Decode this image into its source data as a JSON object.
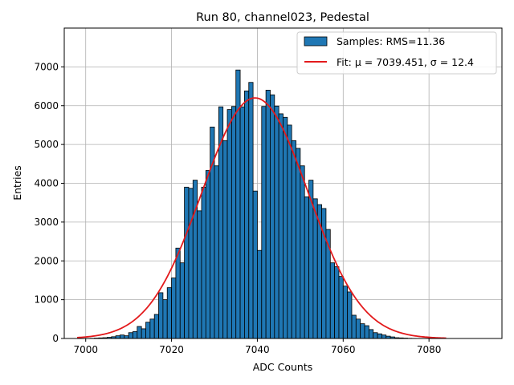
{
  "chart_data": {
    "type": "bar",
    "title": "Run 80, channel023, Pedestal",
    "xlabel": "ADC Counts",
    "ylabel": "Entries",
    "xlim": [
      6995,
      7097
    ],
    "ylim": [
      0,
      8000
    ],
    "xticks": [
      7000,
      7020,
      7040,
      7060,
      7080
    ],
    "yticks": [
      0,
      1000,
      2000,
      3000,
      4000,
      5000,
      6000,
      7000
    ],
    "grid": true,
    "legend_position": "top-right",
    "bar_color": "#1f77b4",
    "fit_color": "#e31a1c",
    "legend": {
      "hist_label": "Samples: RMS=11.36",
      "fit_label": "Fit: μ = 7039.451, σ = 12.4"
    },
    "histogram": {
      "bin_start": 7001,
      "bin_width": 1,
      "counts": [
        5,
        10,
        15,
        20,
        30,
        45,
        70,
        90,
        70,
        150,
        180,
        310,
        250,
        420,
        500,
        620,
        1180,
        1000,
        1310,
        1560,
        2330,
        1950,
        3900,
        3870,
        4080,
        3290,
        3900,
        4330,
        5450,
        4450,
        5970,
        5100,
        5900,
        5980,
        6920,
        5970,
        6380,
        6600,
        3800,
        2270,
        5980,
        6400,
        6280,
        5990,
        5790,
        5700,
        5500,
        5100,
        4900,
        4450,
        3650,
        4080,
        3600,
        3450,
        3350,
        2810,
        1950,
        1850,
        1600,
        1350,
        1200,
        600,
        500,
        380,
        330,
        230,
        150,
        120,
        90,
        60,
        40,
        20,
        15,
        10,
        5,
        3,
        2,
        1,
        1,
        1
      ]
    },
    "fit": {
      "mu": 7039.451,
      "sigma": 12.4,
      "amplitude": 6200,
      "x_range": [
        6998,
        7084
      ]
    }
  }
}
